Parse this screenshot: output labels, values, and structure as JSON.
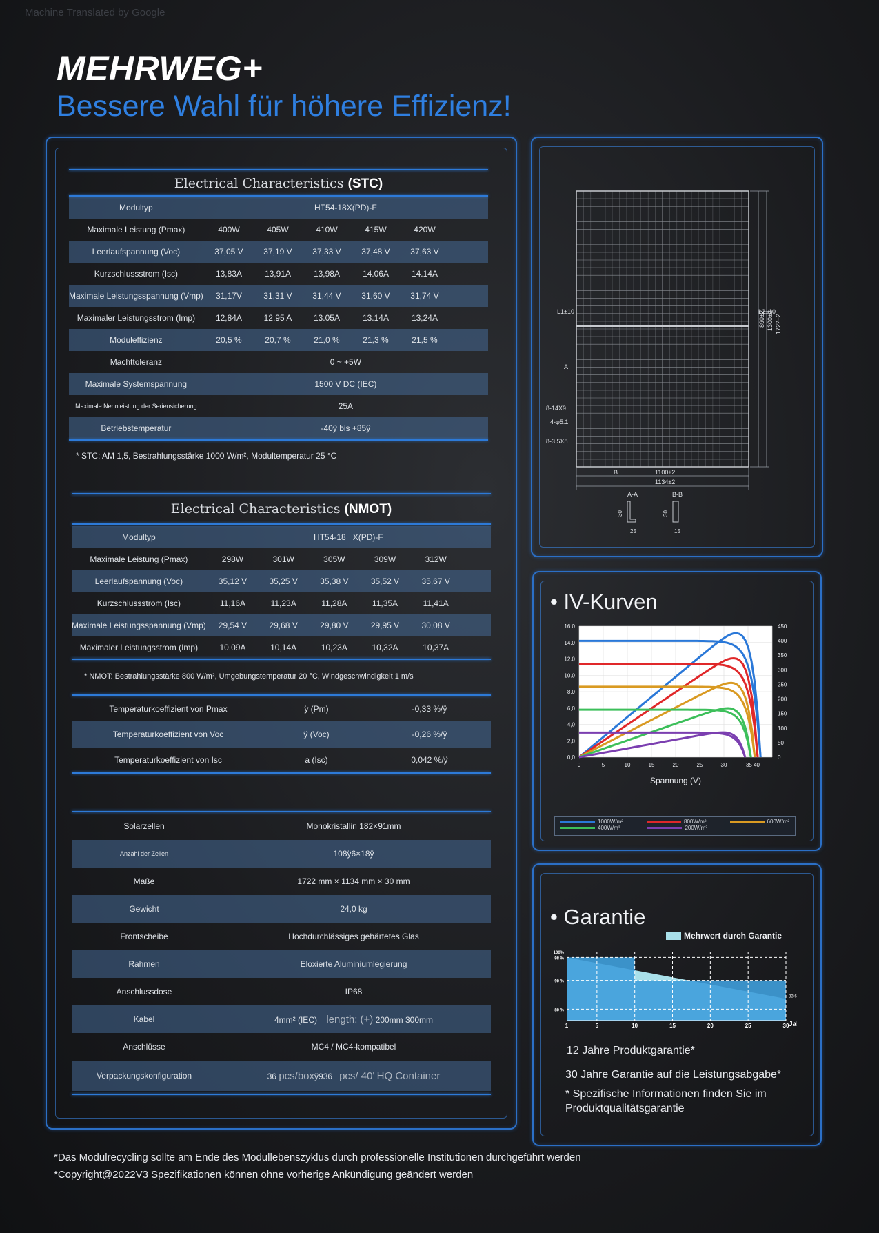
{
  "watermark": "Machine Translated by Google",
  "header": {
    "brand": "MEHRWEG+",
    "tagline": "Bessere Wahl für höhere Effizienz!"
  },
  "stc": {
    "title": "Electrical Characteristics",
    "title_suffix": "(STC)",
    "model_label": "Modultyp",
    "model_value": "HT54-18X(PD)-F",
    "rows": [
      {
        "label": "Maximale Leistung (Pmax)",
        "values": [
          "400W",
          "405W",
          "410W",
          "415W",
          "420W"
        ]
      },
      {
        "label": "Leerlaufspannung (Voc)",
        "values": [
          "37,05 V",
          "37,19 V",
          "37,33 V",
          "37,48 V",
          "37,63 V"
        ]
      },
      {
        "label": "Kurzschlussstrom (Isc)",
        "values": [
          "13,83A",
          "13,91A",
          "13,98A",
          "14.06A",
          "14.14A"
        ]
      },
      {
        "label": "Maximale Leistungsspannung (Vmp)",
        "values": [
          "31,17V",
          "31,31 V",
          "31,44 V",
          "31,60 V",
          "31,74 V"
        ]
      },
      {
        "label": "Maximaler Leistungsstrom (Imp)",
        "values": [
          "12,84A",
          "12,95 A",
          "13.05A",
          "13.14A",
          "13,24A"
        ]
      },
      {
        "label": "Moduleffizienz",
        "values": [
          "20,5 %",
          "20,7 %",
          "21,0 %",
          "21,3 %",
          "21,5 %"
        ]
      }
    ],
    "single_rows": [
      {
        "label": "Machttoleranz",
        "value": "0 ~ +5W"
      },
      {
        "label": "Maximale Systemspannung",
        "value": "1500 V DC (IEC)"
      },
      {
        "label": "Maximale Nennleistung der Seriensicherung",
        "value": "25A"
      },
      {
        "label": "Betriebstemperatur",
        "value": "-40ÿ bis +85ÿ"
      }
    ],
    "note": "* STC: AM 1,5, Bestrahlungsstärke 1000 W/m², Modultemperatur 25 °C"
  },
  "nmot": {
    "title": "Electrical Characteristics",
    "title_suffix": "(NMOT)",
    "model_label": "Modultyp",
    "model_value_a": "HT54-18",
    "model_value_b": "X(PD)-F",
    "rows": [
      {
        "label": "Maximale Leistung (Pmax)",
        "values": [
          "298W",
          "301W",
          "305W",
          "309W",
          "312W"
        ]
      },
      {
        "label": "Leerlaufspannung (Voc)",
        "values": [
          "35,12 V",
          "35,25 V",
          "35,38 V",
          "35,52 V",
          "35,67 V"
        ]
      },
      {
        "label": "Kurzschlussstrom (Isc)",
        "values": [
          "11,16A",
          "11,23A",
          "11,28A",
          "11,35A",
          "11,41A"
        ]
      },
      {
        "label": "Maximale Leistungsspannung (Vmp)",
        "values": [
          "29,54 V",
          "29,68 V",
          "29,80 V",
          "29,95 V",
          "30,08 V"
        ]
      },
      {
        "label": "Maximaler Leistungsstrom (Imp)",
        "values": [
          "10.09A",
          "10,14A",
          "10,23A",
          "10,32A",
          "10,37A"
        ]
      }
    ],
    "note": "* NMOT: Bestrahlungsstärke 800 W/m², Umgebungstemperatur 20 °C, Windgeschwindigkeit 1 m/s"
  },
  "temp": [
    {
      "label": "Temperaturkoeffizient von Pmax",
      "symbol": "ÿ (Pm)",
      "value": "-0,33 %/ÿ"
    },
    {
      "label": "Temperaturkoeffizient von Voc",
      "symbol": "ÿ (Voc)",
      "value": "-0,26 %/ÿ"
    },
    {
      "label": "Temperaturkoeffizient von Isc",
      "symbol": "a (Isc)",
      "value": "0,042 %/ÿ"
    }
  ],
  "mech": [
    {
      "label": "Solarzellen",
      "value": "Monokristallin 182×91mm"
    },
    {
      "label": "Anzahl der Zellen",
      "value": "108ÿ6×18ÿ"
    },
    {
      "label": "Maße",
      "value": "1722 mm × 1134 mm × 30 mm"
    },
    {
      "label": "Gewicht",
      "value": "24,0 kg"
    },
    {
      "label": "Frontscheibe",
      "value": "Hochdurchlässiges gehärtetes Glas"
    },
    {
      "label": "Rahmen",
      "value": "Eloxierte Aluminiumlegierung"
    },
    {
      "label": "Anschlussdose",
      "value": "IP68"
    },
    {
      "label": "Kabel",
      "value_a": "4mm² (IEC)",
      "value_b": "length: (+)",
      "value_c": "200mm 300mm"
    },
    {
      "label": "Anschlüsse",
      "value": "MC4 / MC4-kompatibel"
    },
    {
      "label": "Verpackungskonfiguration",
      "value_a": "36",
      "value_b": "pcs/box",
      "value_c": "ÿ936",
      "value_d": "pcs/ 40'",
      "value_e": "HQ Container"
    }
  ],
  "drawing": {
    "dims": {
      "l1": "L1±10",
      "l2": "L2±10",
      "d1": "890±2",
      "d2": "1300±2",
      "d3": "1722±2",
      "a": "A",
      "b": "B",
      "hole1": "8-14X9",
      "hole2": "4-φ5.1",
      "hole3": "8-3.5X8",
      "w1": "1100±2",
      "w2": "1134±2",
      "sec_a": "A-A",
      "sec_b": "B-B",
      "h30a": "30",
      "h30b": "30",
      "w25": "25",
      "w15": "15"
    }
  },
  "iv": {
    "title": "• IV-Kurven",
    "xlabel": "Spannung (V)",
    "y_left_ticks": [
      "16.0",
      "14.0",
      "12.0",
      "10.0",
      "8.0",
      "6,0",
      "4,0",
      "2,0",
      "0,0"
    ],
    "y_right_ticks": [
      "450",
      "400",
      "350",
      "300",
      "250",
      "200",
      "150",
      "100",
      "50",
      "0"
    ],
    "x_ticks": [
      "0",
      "5",
      "10",
      "15",
      "20",
      "25",
      "30",
      "35 40"
    ],
    "legend": [
      "1000W/m²",
      "800W/m²",
      "600W/m²",
      "400W/m²",
      "200W/m²"
    ],
    "colors": [
      "#2a78d8",
      "#e0282a",
      "#d99a22",
      "#3cbf5a",
      "#7b3fb0"
    ]
  },
  "chart_data": {
    "type": "line",
    "xlabel": "Spannung (V)",
    "ylabel": "",
    "xlim": [
      0,
      40
    ],
    "ylim": [
      0,
      16
    ],
    "ylim_right": [
      0,
      450
    ],
    "series": [
      {
        "name": "1000W/m²",
        "isc": 14.2,
        "voc": 37.6,
        "pmax_v": 32,
        "pmax_p": 425
      },
      {
        "name": "800W/m²",
        "isc": 11.4,
        "voc": 37.0,
        "pmax_v": 32,
        "pmax_p": 340
      },
      {
        "name": "600W/m²",
        "isc": 8.6,
        "voc": 36.4,
        "pmax_v": 31.5,
        "pmax_p": 255
      },
      {
        "name": "400W/m²",
        "isc": 5.8,
        "voc": 35.6,
        "pmax_v": 31,
        "pmax_p": 168
      },
      {
        "name": "200W/m²",
        "isc": 3.0,
        "voc": 34.4,
        "pmax_v": 30,
        "pmax_p": 85
      }
    ]
  },
  "garantie": {
    "title": "• Garantie",
    "legend": "Mehrwert durch Garantie",
    "y_labels": [
      "100%",
      "98 %",
      "90 %",
      "80 %"
    ],
    "x_labels": [
      "1",
      "5",
      "10",
      "15",
      "20",
      "25",
      "30"
    ],
    "x_unit": "Jahr",
    "end_label": "83,6 %",
    "line1": "12 Jahre Produktgarantie*",
    "line2": "30 Jahre Garantie auf die Leistungsabgabe*",
    "line3": "* Spezifische Informationen finden Sie im",
    "line4": "Produktqualitätsgarantie",
    "colors": {
      "light": "#a9e0ea",
      "dark": "#3f9fdc"
    }
  },
  "footer": {
    "line1": "*Das Modulrecycling sollte am Ende des Modullebenszyklus durch professionelle Institutionen durchgeführt werden",
    "line2": "*Copyright@2022V3 Spezifikationen können ohne vorherige Ankündigung geändert werden"
  }
}
